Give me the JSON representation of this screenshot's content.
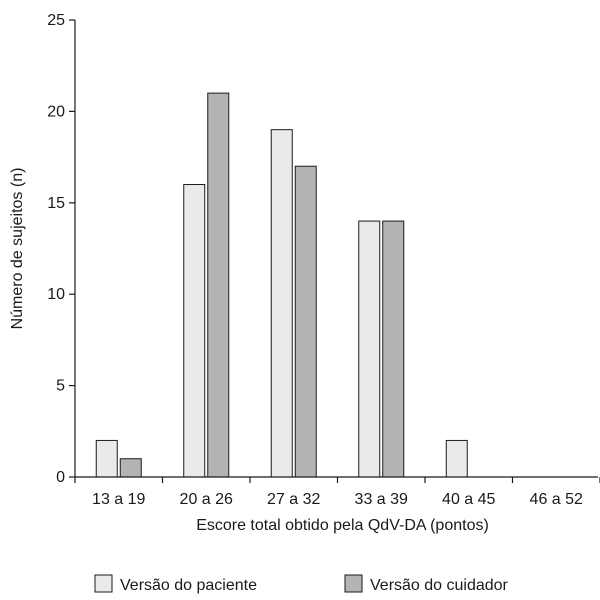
{
  "chart_data": {
    "type": "bar",
    "title": "",
    "xlabel": "Escore total obtido pela QdV-DA (pontos)",
    "ylabel": "Número de sujeitos (n)",
    "ylim": [
      0,
      25
    ],
    "yticks": [
      "0",
      "5",
      "10",
      "15",
      "20",
      "25"
    ],
    "grid": false,
    "legend_position": "bottom",
    "categories": [
      "13 a 19",
      "20 a 26",
      "27 a 32",
      "33 a 39",
      "40 a 45",
      "46 a 52"
    ],
    "series": [
      {
        "name": "Versão do paciente",
        "color": "#eaeaea",
        "values": [
          2,
          16,
          19,
          14,
          2,
          0
        ]
      },
      {
        "name": "Versão do cuidador",
        "color": "#b4b4b4",
        "values": [
          1,
          21,
          17,
          14,
          0,
          0
        ]
      }
    ]
  }
}
